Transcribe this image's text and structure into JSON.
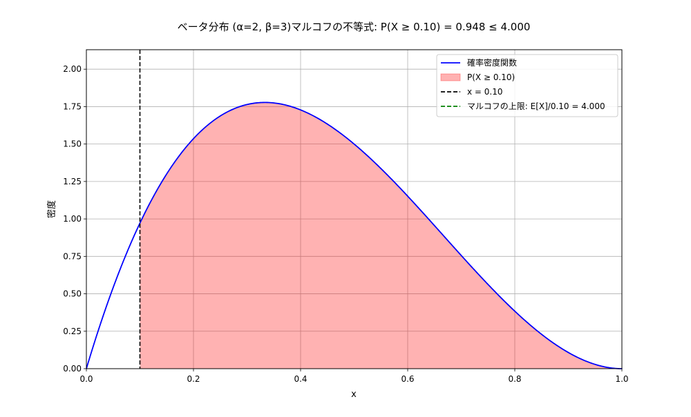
{
  "chart_data": {
    "type": "area",
    "title": "ベータ分布 (α=2, β=3)マルコフの不等式: P(X ≥ 0.10) = 0.948 ≤ 4.000",
    "xlabel": "x",
    "ylabel": "密度",
    "xlim": [
      0.0,
      1.0
    ],
    "ylim": [
      0.0,
      2.13
    ],
    "grid": true,
    "x_ticks": [
      "0.0",
      "0.2",
      "0.4",
      "0.6",
      "0.8",
      "1.0"
    ],
    "y_ticks": [
      "0.00",
      "0.25",
      "0.50",
      "0.75",
      "1.00",
      "1.25",
      "1.50",
      "1.75",
      "2.00"
    ],
    "series": [
      {
        "name": "確率密度関数",
        "kind": "line",
        "color": "#0000ff",
        "x": [
          0.0,
          0.05,
          0.1,
          0.15,
          0.2,
          0.25,
          0.3,
          0.333,
          0.35,
          0.4,
          0.45,
          0.5,
          0.55,
          0.6,
          0.65,
          0.7,
          0.75,
          0.8,
          0.85,
          0.9,
          0.95,
          1.0
        ],
        "y": [
          0.0,
          0.542,
          0.972,
          1.301,
          1.536,
          1.688,
          1.764,
          1.778,
          1.775,
          1.728,
          1.634,
          1.5,
          1.337,
          1.152,
          0.956,
          0.756,
          0.563,
          0.384,
          0.23,
          0.108,
          0.029,
          0.0
        ]
      },
      {
        "name": "P(X ≥ 0.10)",
        "kind": "area",
        "color": "#ff0000",
        "x_from": 0.1
      },
      {
        "name": "x = 0.10",
        "kind": "vline",
        "color": "#000000",
        "x": 0.1
      },
      {
        "name": "マルコフの上限: E[X]/0.10 = 4.000",
        "kind": "hline",
        "color": "#008000",
        "y": 4.0
      }
    ],
    "legend_position": "top-right"
  }
}
